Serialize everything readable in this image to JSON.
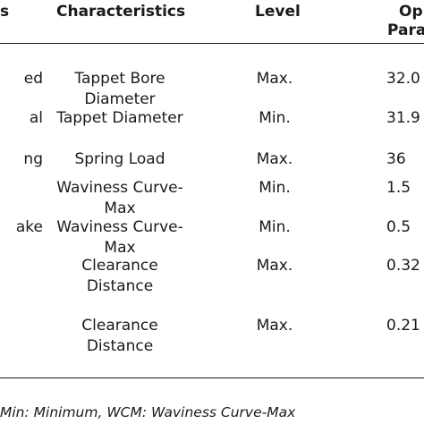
{
  "table": {
    "headers": {
      "first": "s",
      "characteristics": "Characteristics",
      "level": "Level",
      "param_line1": "Op",
      "param_line2": "Para"
    },
    "rows": [
      {
        "first": "ed",
        "char_line1": "Tappet Bore",
        "char_line2": "Diameter",
        "level": "Max.",
        "param": "32.0"
      },
      {
        "first": "al",
        "char_line1": "Tappet Diameter",
        "char_line2": "",
        "level": "Min.",
        "param": "31.9"
      },
      {
        "first": "ng",
        "char_line1": "Spring Load",
        "char_line2": "",
        "level": "Max.",
        "param": "36"
      },
      {
        "first": "",
        "char_line1": "Waviness Curve-",
        "char_line2": "Max",
        "level": "Min.",
        "param": "1.5"
      },
      {
        "first": "ake",
        "char_line1": "Waviness Curve-",
        "char_line2": "Max",
        "level": "Min.",
        "param": "0.5"
      },
      {
        "first": "",
        "char_line1": "Clearance",
        "char_line2": "Distance",
        "level": "Max.",
        "param": "0.32"
      },
      {
        "first": "",
        "char_line1": "Clearance",
        "char_line2": "Distance",
        "level": "Max.",
        "param": "0.21"
      }
    ]
  },
  "footnote": "Min: Minimum, WCM: Waviness Curve-Max"
}
